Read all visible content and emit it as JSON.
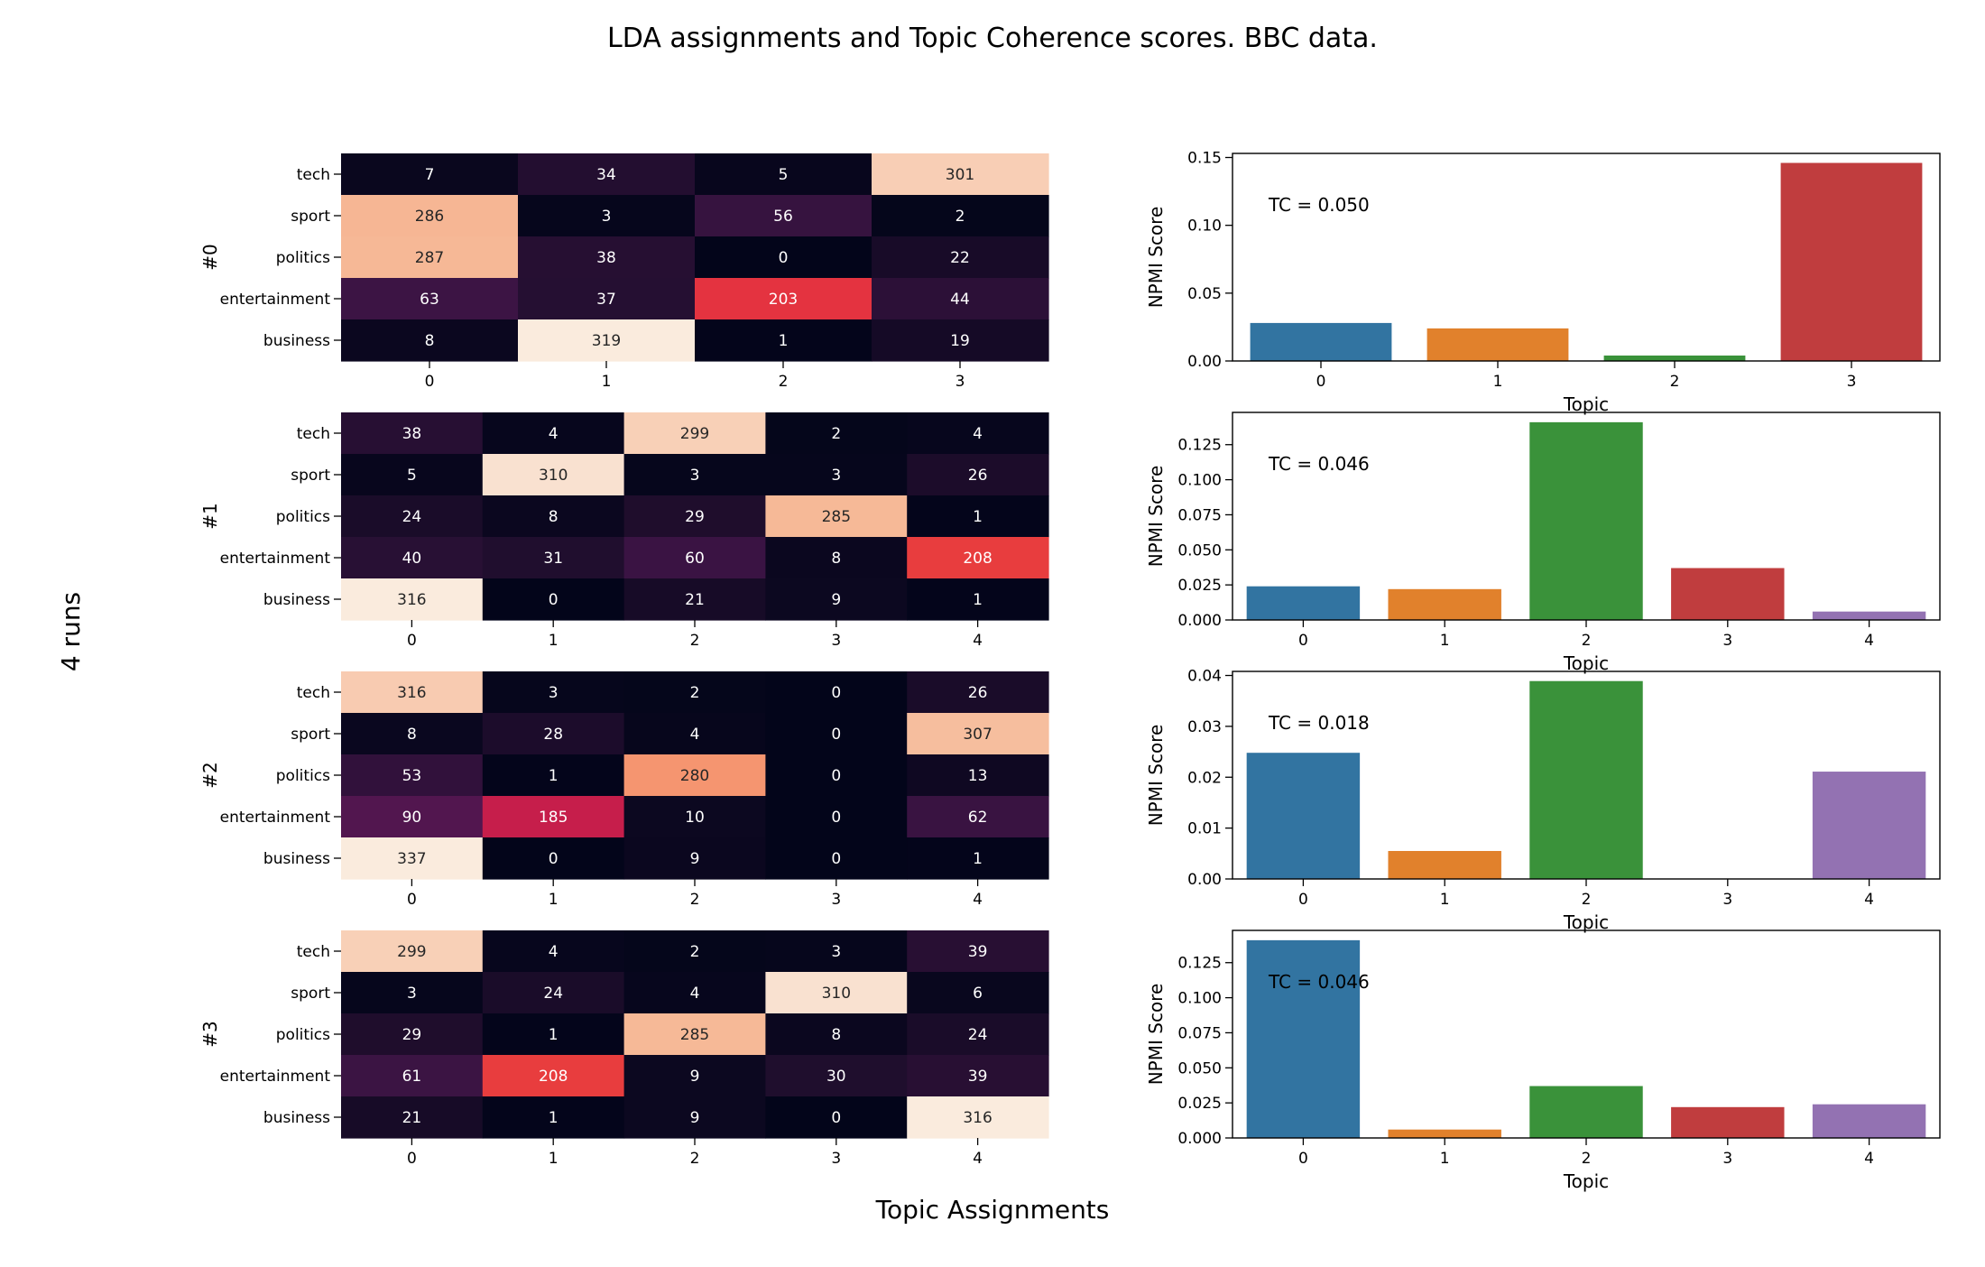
{
  "figure": {
    "title": "LDA assignments and Topic Coherence scores. BBC data.",
    "left_label": "4 runs",
    "bottom_label": "Topic Assignments"
  },
  "chart_data": [
    {
      "type": "heatmap",
      "run_label": "#0",
      "rows": [
        "tech",
        "sport",
        "politics",
        "entertainment",
        "business"
      ],
      "columns": [
        "0",
        "1",
        "2",
        "3"
      ],
      "values": [
        [
          7,
          34,
          5,
          301
        ],
        [
          286,
          3,
          56,
          2
        ],
        [
          287,
          38,
          0,
          22
        ],
        [
          63,
          37,
          203,
          44
        ],
        [
          8,
          319,
          1,
          19
        ]
      ],
      "colorbar": false
    },
    {
      "type": "bar",
      "tc_text": "TC = 0.050",
      "xlabel": "Topic",
      "ylabel": "NPMI Score",
      "categories": [
        "0",
        "1",
        "2",
        "3"
      ],
      "values": [
        0.028,
        0.024,
        0.004,
        0.146
      ],
      "yticks": [
        "0.00",
        "0.05",
        "0.10",
        "0.15"
      ],
      "ylim": [
        0,
        0.153
      ]
    },
    {
      "type": "heatmap",
      "run_label": "#1",
      "rows": [
        "tech",
        "sport",
        "politics",
        "entertainment",
        "business"
      ],
      "columns": [
        "0",
        "1",
        "2",
        "3",
        "4"
      ],
      "values": [
        [
          38,
          4,
          299,
          2,
          4
        ],
        [
          5,
          310,
          3,
          3,
          26
        ],
        [
          24,
          8,
          29,
          285,
          1
        ],
        [
          40,
          31,
          60,
          8,
          208
        ],
        [
          316,
          0,
          21,
          9,
          1
        ]
      ],
      "colorbar": false
    },
    {
      "type": "bar",
      "tc_text": "TC = 0.046",
      "xlabel": "Topic",
      "ylabel": "NPMI Score",
      "categories": [
        "0",
        "1",
        "2",
        "3",
        "4"
      ],
      "values": [
        0.024,
        0.022,
        0.141,
        0.037,
        0.006
      ],
      "yticks": [
        "0.000",
        "0.025",
        "0.050",
        "0.075",
        "0.100",
        "0.125"
      ],
      "ylim": [
        0,
        0.148
      ]
    },
    {
      "type": "heatmap",
      "run_label": "#2",
      "rows": [
        "tech",
        "sport",
        "politics",
        "entertainment",
        "business"
      ],
      "columns": [
        "0",
        "1",
        "2",
        "3",
        "4"
      ],
      "values": [
        [
          316,
          3,
          2,
          0,
          26
        ],
        [
          8,
          28,
          4,
          0,
          307
        ],
        [
          53,
          1,
          280,
          0,
          13
        ],
        [
          90,
          185,
          10,
          0,
          62
        ],
        [
          337,
          0,
          9,
          0,
          1
        ]
      ],
      "colorbar": false
    },
    {
      "type": "bar",
      "tc_text": "TC = 0.018",
      "xlabel": "Topic",
      "ylabel": "NPMI Score",
      "categories": [
        "0",
        "1",
        "2",
        "3",
        "4"
      ],
      "values": [
        0.0248,
        0.0055,
        0.0389,
        0.0,
        0.0211
      ],
      "yticks": [
        "0.00",
        "0.01",
        "0.02",
        "0.03",
        "0.04"
      ],
      "ylim": [
        0,
        0.0408
      ]
    },
    {
      "type": "heatmap",
      "run_label": "#3",
      "rows": [
        "tech",
        "sport",
        "politics",
        "entertainment",
        "business"
      ],
      "columns": [
        "0",
        "1",
        "2",
        "3",
        "4"
      ],
      "values": [
        [
          299,
          4,
          2,
          3,
          39
        ],
        [
          3,
          24,
          4,
          310,
          6
        ],
        [
          29,
          1,
          285,
          8,
          24
        ],
        [
          61,
          208,
          9,
          30,
          39
        ],
        [
          21,
          1,
          9,
          0,
          316
        ]
      ],
      "colorbar": false
    },
    {
      "type": "bar",
      "tc_text": "TC = 0.046",
      "xlabel": "Topic",
      "ylabel": "NPMI Score",
      "categories": [
        "0",
        "1",
        "2",
        "3",
        "4"
      ],
      "values": [
        0.141,
        0.006,
        0.037,
        0.022,
        0.024
      ],
      "yticks": [
        "0.000",
        "0.025",
        "0.050",
        "0.075",
        "0.100",
        "0.125"
      ],
      "ylim": [
        0,
        0.148
      ]
    }
  ],
  "colors": {
    "bars": [
      "#3274a1",
      "#e1812c",
      "#3a923a",
      "#c03d3e",
      "#9372b2"
    ],
    "heatmap_colormap": "rocket"
  }
}
